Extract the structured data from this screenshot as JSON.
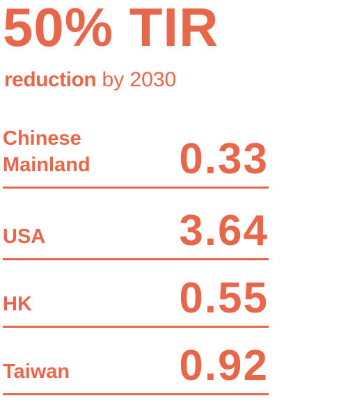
{
  "header": {
    "title": "50% TIR",
    "subtitle_bold": "reduction",
    "subtitle_rest": "by 2030"
  },
  "rows": [
    {
      "label": "Chinese Mainland",
      "value": 0.33
    },
    {
      "label": "USA",
      "value": 3.64
    },
    {
      "label": "HK",
      "value": 0.55
    },
    {
      "label": "Taiwan",
      "value": 0.92
    }
  ]
}
